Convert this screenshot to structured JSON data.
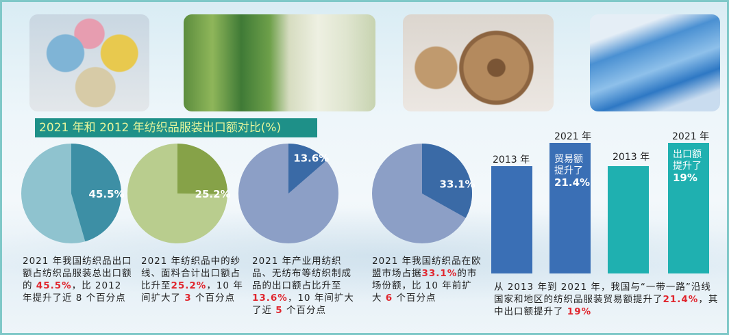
{
  "title": "2021 年和 2012 年纺织品服装出口额对比(%)",
  "chart_data": [
    {
      "type": "pie",
      "values": [
        45.5,
        54.5
      ],
      "label": "45.5%",
      "colors": [
        "#3d8fa5",
        "#8fc3cf"
      ]
    },
    {
      "type": "pie",
      "values": [
        25.2,
        74.8
      ],
      "label": "25.2%",
      "colors": [
        "#86a248",
        "#b9cd8e"
      ]
    },
    {
      "type": "pie",
      "values": [
        13.6,
        86.4
      ],
      "label": "13.6%",
      "colors": [
        "#3a6aa6",
        "#8c9fc6"
      ]
    },
    {
      "type": "pie",
      "values": [
        33.1,
        66.9
      ],
      "label": "33.1%",
      "colors": [
        "#3a6aa6",
        "#8c9fc6"
      ]
    },
    {
      "type": "bar",
      "categories": [
        "2013 年",
        "2021 年"
      ],
      "values": [
        100,
        121.4
      ],
      "color": "#3a6fb5",
      "annotation": [
        "贸易额",
        "提升了",
        "21.4%"
      ]
    },
    {
      "type": "bar",
      "categories": [
        "2013 年",
        "2021 年"
      ],
      "values": [
        100,
        119
      ],
      "color": "#1fb0b0",
      "annotation": [
        "出口额",
        "提升了",
        "19%"
      ]
    }
  ],
  "captions": [
    {
      "pre": "2021 年我国纺织品出口额占纺织品服装总出口额的 ",
      "hl": "45.5%",
      "post": "，比 2012 年提升了近 8 个百分点"
    },
    {
      "pre": "2021 年纺织品中的纱线、面料合计出口额占比升至",
      "hl": "25.2%",
      "mid": "，10 年间扩大了 ",
      "hl2": "3",
      "post": " 个百分点"
    },
    {
      "pre": "2021 年产业用纺织品、无纺布等纺织制成品的出口额占比升至 ",
      "hl": "13.6%",
      "mid": "，10 年间扩大了近 ",
      "hl2": "5",
      "post": " 个百分点"
    },
    {
      "pre": "2021 年我国纺织品在欧盟市场占据",
      "hl": "33.1%",
      "mid": "的市场份额，比 10 年前扩大 ",
      "hl2": "6",
      "post": " 个百分点"
    }
  ],
  "bar_caption": {
    "pre": "从 2013 年到 2021 年，我国与“一带一路”沿线国家和地区的纺织品服装贸易额提升了",
    "hl": "21.4%",
    "mid": "，其中出口额提升了 ",
    "hl2": "19%"
  }
}
